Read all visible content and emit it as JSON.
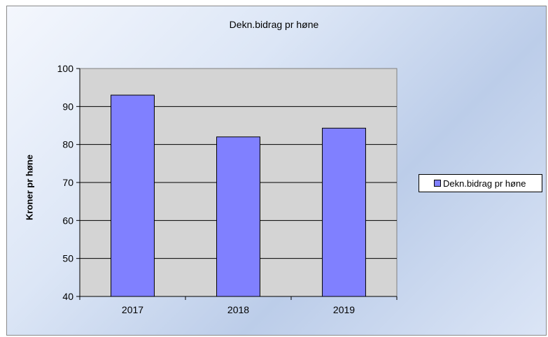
{
  "chart_data": {
    "type": "bar",
    "title": "Dekn.bidrag pr høne",
    "xlabel": "",
    "ylabel": "Kroner pr høne",
    "categories": [
      "2017",
      "2018",
      "2019"
    ],
    "series": [
      {
        "name": "Dekn.bidrag pr høne",
        "values": [
          93,
          82,
          84.3
        ]
      }
    ],
    "ylim": [
      40,
      100
    ],
    "yticks": [
      40,
      50,
      60,
      70,
      80,
      90,
      100
    ],
    "grid": true,
    "legend": "right",
    "colors": {
      "bar": "#8080ff",
      "plot_bg": "#c0c0c0"
    }
  }
}
